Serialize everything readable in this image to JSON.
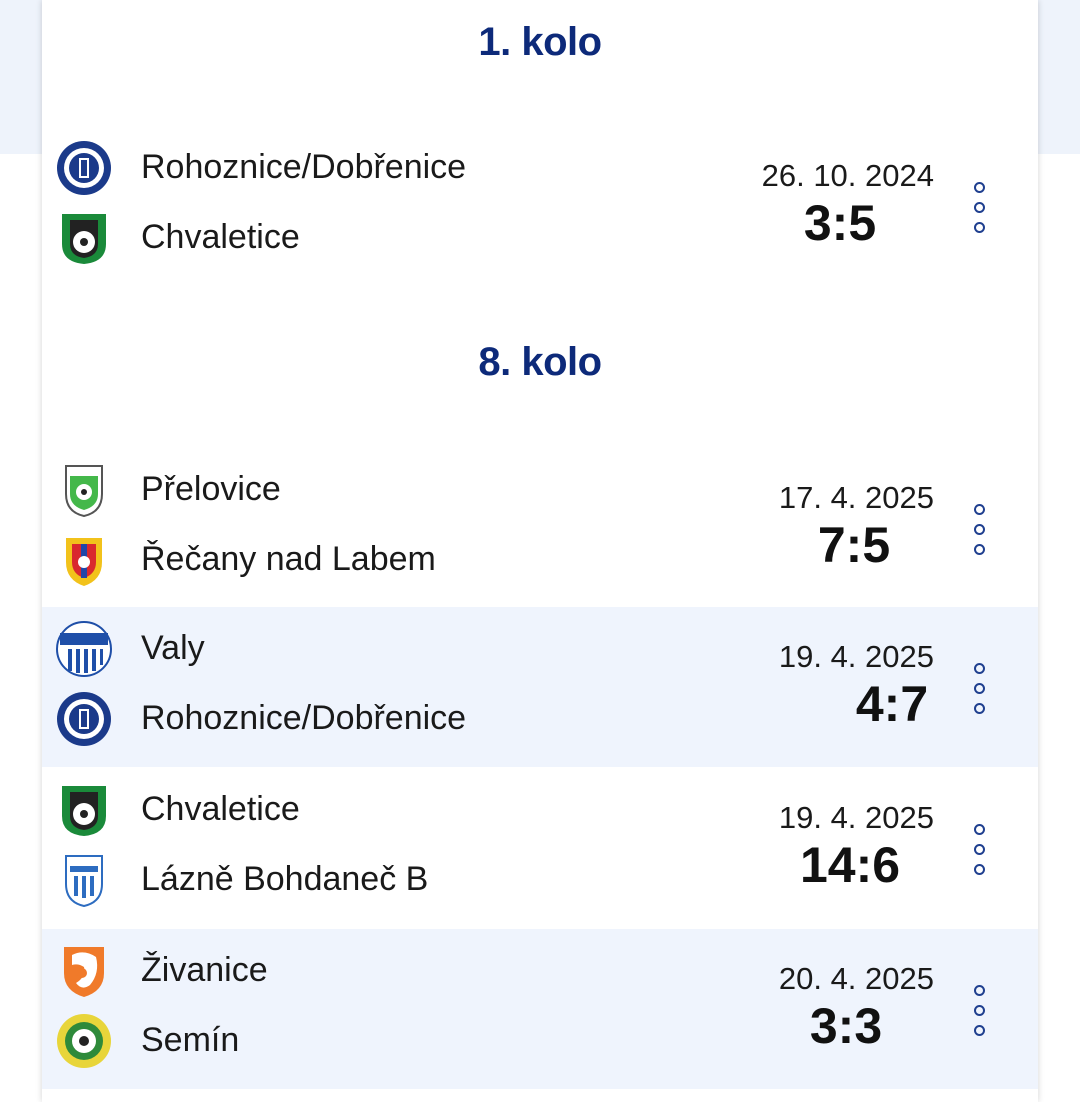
{
  "rounds": [
    {
      "title": "1. kolo",
      "matches": [
        {
          "home": "Rohoznice/Dobřenice",
          "away": "Chvaletice",
          "date": "26. 10. 2024",
          "score": "3:5",
          "home_logo": "rohoznice-crest-icon",
          "away_logo": "chvaletice-crest-icon"
        }
      ]
    },
    {
      "title": "8. kolo",
      "matches": [
        {
          "home": "Přelovice",
          "away": "Řečany nad Labem",
          "date": "17. 4. 2025",
          "score": "7:5",
          "home_logo": "prelovice-crest-icon",
          "away_logo": "recany-crest-icon"
        },
        {
          "home": "Valy",
          "away": "Rohoznice/Dobřenice",
          "date": "19. 4. 2025",
          "score": "4:7",
          "home_logo": "valy-crest-icon",
          "away_logo": "rohoznice-crest-icon"
        },
        {
          "home": "Chvaletice",
          "away": "Lázně Bohdaneč B",
          "date": "19. 4. 2025",
          "score": "14:6",
          "home_logo": "chvaletice-crest-icon",
          "away_logo": "bohdanec-crest-icon"
        },
        {
          "home": "Živanice",
          "away": "Semín",
          "date": "20. 4. 2025",
          "score": "3:3",
          "home_logo": "zivanice-crest-icon",
          "away_logo": "semin-crest-icon"
        }
      ]
    }
  ],
  "colors": {
    "accent": "#0d2a7a",
    "row_alt": "#eff4fd",
    "page_band": "#eef3fb"
  }
}
